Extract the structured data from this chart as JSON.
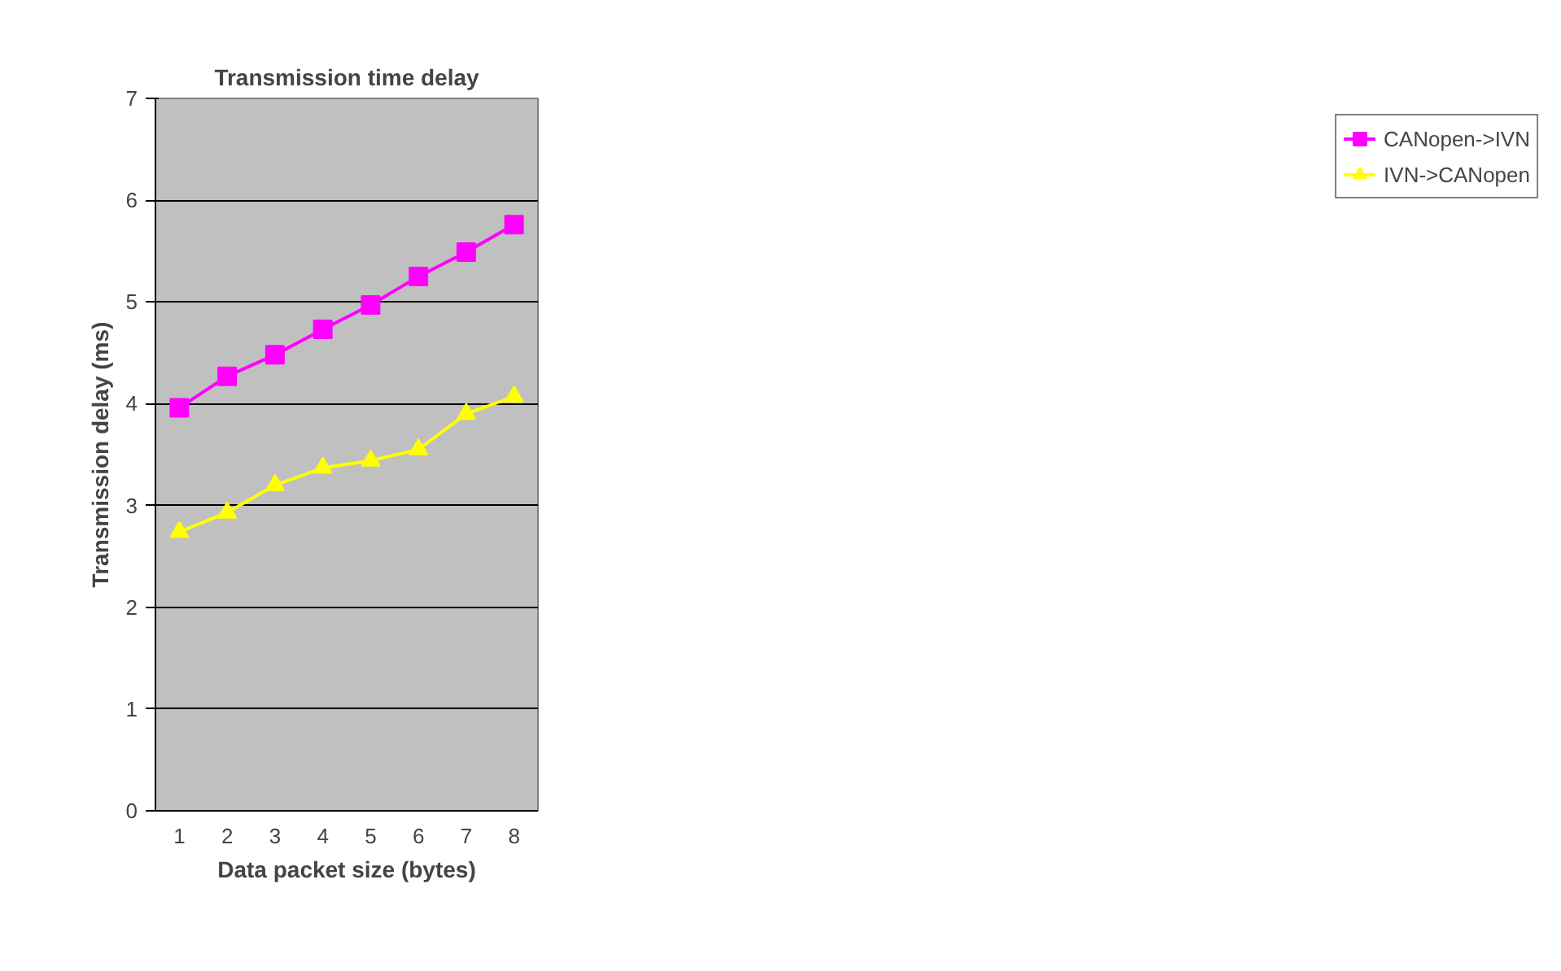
{
  "chart_data": {
    "type": "line",
    "title": "Transmission time delay",
    "xlabel": "Data packet size (bytes)",
    "ylabel": "Transmission delay (ms)",
    "categories": [
      "1",
      "2",
      "3",
      "4",
      "5",
      "6",
      "7",
      "8"
    ],
    "series": [
      {
        "name": "CANopen->IVN",
        "color": "#ff00ff",
        "marker": "square",
        "values": [
          3.96,
          4.27,
          4.48,
          4.73,
          4.97,
          5.25,
          5.49,
          5.76
        ]
      },
      {
        "name": "IVN->CANopen",
        "color": "#ffff00",
        "marker": "triangle",
        "values": [
          2.74,
          2.93,
          3.2,
          3.37,
          3.44,
          3.55,
          3.9,
          4.07
        ]
      }
    ],
    "ylim": [
      0,
      7
    ],
    "yticks": [
      0,
      1,
      2,
      3,
      4,
      5,
      6,
      7
    ],
    "grid": "y",
    "legend": "right",
    "line_style": "solid"
  }
}
